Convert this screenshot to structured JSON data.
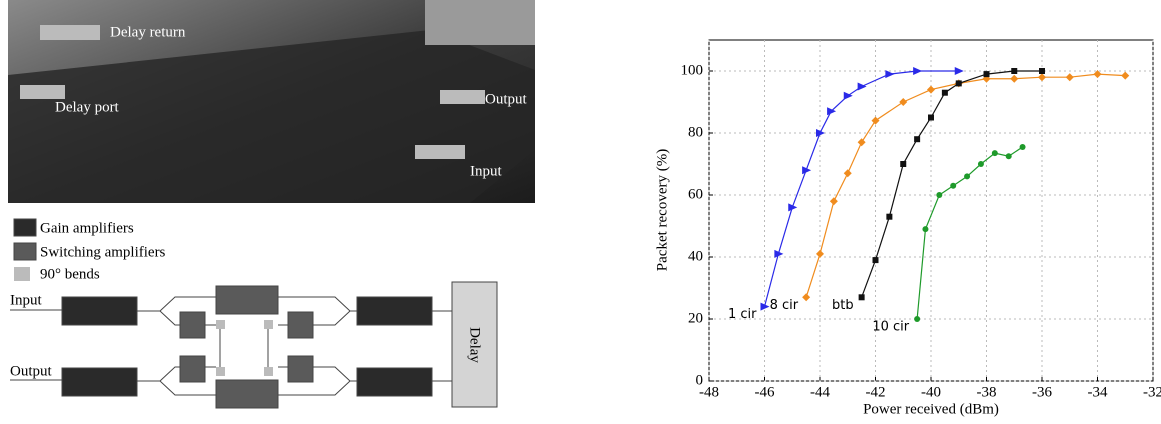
{
  "photo": {
    "labels": [
      "Delay return",
      "Delay port",
      "Output",
      "Input"
    ]
  },
  "diagram": {
    "legend": [
      "Gain amplifiers",
      "Switching amplifiers",
      "90° bends"
    ],
    "labels": [
      "Input",
      "Output",
      "Delay"
    ]
  },
  "chart_data": {
    "type": "line",
    "xlabel": "Power received (dBm)",
    "ylabel": "Packet recovery (%)",
    "xlim": [
      -48,
      -32
    ],
    "ylim": [
      0,
      110
    ],
    "xticks": [
      -48,
      -46,
      -44,
      -42,
      -40,
      -38,
      -36,
      -34,
      -32
    ],
    "yticks": [
      0,
      20,
      40,
      60,
      80,
      100
    ],
    "grid": true,
    "series": [
      {
        "name": "1 cir",
        "color": "#2a2ae8",
        "marker": "triangle",
        "x": [
          -46,
          -45.5,
          -45,
          -44.5,
          -44,
          -43.6,
          -43,
          -42.5,
          -41.5,
          -40.5,
          -39
        ],
        "values": [
          24,
          41,
          56,
          68,
          80,
          87,
          92,
          95,
          99,
          100,
          100
        ]
      },
      {
        "name": "8 cir",
        "color": "#f08c1e",
        "marker": "diamond",
        "x": [
          -44.5,
          -44,
          -43.5,
          -43,
          -42.5,
          -42,
          -41,
          -40,
          -39,
          -38,
          -37,
          -36,
          -35,
          -34,
          -33
        ],
        "values": [
          27,
          41,
          58,
          67,
          77,
          84,
          90,
          94,
          96,
          97.5,
          97.5,
          98,
          98,
          99,
          98.5
        ]
      },
      {
        "name": "btb",
        "color": "#111111",
        "marker": "square",
        "x": [
          -42.5,
          -42,
          -41.5,
          -41,
          -40.5,
          -40,
          -39.5,
          -39,
          -38,
          -37,
          -36
        ],
        "values": [
          27,
          39,
          53,
          70,
          78,
          85,
          93,
          96,
          99,
          100,
          100
        ]
      },
      {
        "name": "10 cir",
        "color": "#1e9a2a",
        "marker": "circle",
        "x": [
          -40.5,
          -40.2,
          -39.7,
          -39.2,
          -38.7,
          -38.2,
          -37.7,
          -37.2,
          -36.7
        ],
        "values": [
          20,
          49,
          60,
          63,
          66,
          70,
          73.5,
          72.5,
          75.5
        ]
      }
    ]
  }
}
